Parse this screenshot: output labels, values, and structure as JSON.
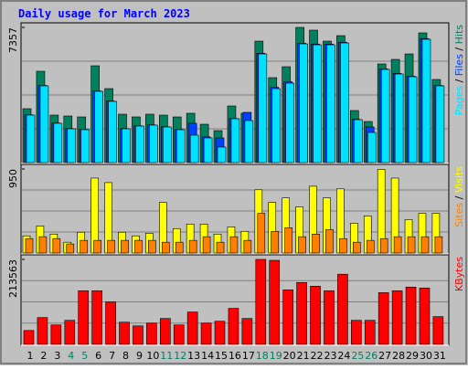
{
  "chart_data": {
    "type": "bar",
    "title": "Daily usage for March 2023",
    "legend_separator": "/",
    "categories": [
      "1",
      "2",
      "3",
      "4",
      "5",
      "6",
      "7",
      "8",
      "9",
      "10",
      "11",
      "12",
      "13",
      "14",
      "15",
      "16",
      "17",
      "18",
      "19",
      "20",
      "21",
      "22",
      "23",
      "24",
      "25",
      "26",
      "27",
      "28",
      "29",
      "30",
      "31"
    ],
    "category_colors": [
      "#000000",
      "#000000",
      "#000000",
      "#00805c",
      "#00805c",
      "#000000",
      "#000000",
      "#000000",
      "#000000",
      "#000000",
      "#00805c",
      "#00805c",
      "#000000",
      "#000000",
      "#000000",
      "#000000",
      "#000000",
      "#00805c",
      "#00805c",
      "#000000",
      "#000000",
      "#000000",
      "#000000",
      "#000000",
      "#00805c",
      "#00805c",
      "#000000",
      "#000000",
      "#000000",
      "#000000",
      "#000000"
    ],
    "panels": [
      {
        "ylim": [
          0,
          7357
        ],
        "yticks": [
          7357
        ],
        "series": [
          {
            "name": "Hits",
            "color": "#00805c",
            "values": [
              2933,
              4970,
              2584,
              2535,
              2485,
              5268,
              4026,
              2634,
              2485,
              2634,
              2584,
              2485,
              2684,
              2087,
              1740,
              3081,
              2684,
              6610,
              4622,
              5218,
              7357,
              7207,
              6610,
              6908,
              2833,
              2236,
              5368,
              5616,
              5914,
              7058,
              4523
            ]
          },
          {
            "name": "Files",
            "color": "#0040ff",
            "values": [
              2600,
              4200,
              2150,
              1850,
              1800,
              3900,
              3350,
              1850,
              2000,
              2050,
              1950,
              1800,
              2137,
              1400,
              1342,
              2400,
              2733,
              5950,
              4100,
              4400,
              6500,
              6450,
              6450,
              6550,
              2350,
              1940,
              5100,
              4850,
              4700,
              6750,
              4200
            ]
          },
          {
            "name": "Pages",
            "color": "#00e0ff",
            "values": [
              2584,
              4175,
              2137,
              1839,
              1789,
              3877,
              3330,
              1839,
              1988,
              2038,
              1938,
              1789,
              1491,
              1342,
              845,
              2386,
              2286,
              5914,
              4026,
              4324,
              6461,
              6411,
              6411,
              6511,
              2336,
              1640,
              5069,
              4821,
              4672,
              6710,
              4175
            ]
          }
        ]
      },
      {
        "ylim": [
          0,
          950
        ],
        "yticks": [
          950
        ],
        "series": [
          {
            "name": "Visits",
            "color": "#ffff00",
            "values": [
              194,
              306,
              214,
              122,
              235,
              847,
              796,
              235,
              194,
              224,
              572,
              276,
              327,
              327,
              214,
              296,
              245,
              715,
              572,
              623,
              521,
              755,
              623,
              725,
              337,
              419,
              945,
              847,
              378,
              449,
              449
            ]
          },
          {
            "name": "Sites",
            "color": "#ff8000",
            "values": [
              163,
              184,
              163,
              102,
              143,
              143,
              143,
              143,
              143,
              143,
              122,
              122,
              143,
              184,
              122,
              184,
              143,
              449,
              245,
              286,
              184,
              214,
              265,
              163,
              122,
              143,
              163,
              184,
              184,
              184,
              184
            ]
          }
        ]
      },
      {
        "ylim": [
          0,
          213563
        ],
        "yticks": [
          213563
        ],
        "series": [
          {
            "name": "KBytes",
            "color": "#ff0000",
            "values": [
              34820,
              67300,
              48740,
              60350,
              134600,
              134600,
              106770,
              55700,
              46420,
              53380,
              64990,
              48740,
              81240,
              53380,
              58030,
              90520,
              64990,
              213563,
              211240,
              136940,
              155510,
              146230,
              134600,
              176400,
              60350,
              60350,
              129980,
              134600,
              143900,
              141580,
              69630
            ]
          }
        ]
      }
    ]
  }
}
